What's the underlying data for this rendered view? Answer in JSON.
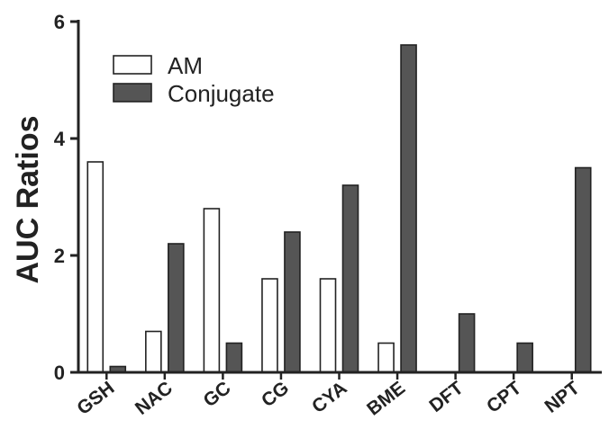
{
  "chart_data": {
    "type": "bar",
    "title": "",
    "xlabel": "",
    "ylabel": "AUC Ratios",
    "ylim": [
      0,
      6
    ],
    "yticks": [
      0,
      2,
      4,
      6
    ],
    "grid": false,
    "legend_position": "top-left",
    "categories": [
      "GSH",
      "NAC",
      "GC",
      "CG",
      "CYA",
      "BME",
      "DFT",
      "CPT",
      "NPT"
    ],
    "series": [
      {
        "name": "AM",
        "color": "#ffffff",
        "values": [
          3.6,
          0.7,
          2.8,
          1.6,
          1.6,
          0.5,
          null,
          null,
          null
        ]
      },
      {
        "name": "Conjugate",
        "color": "#555555",
        "values": [
          0.1,
          2.2,
          0.5,
          2.4,
          3.2,
          5.6,
          1.0,
          0.5,
          3.5
        ]
      }
    ]
  }
}
